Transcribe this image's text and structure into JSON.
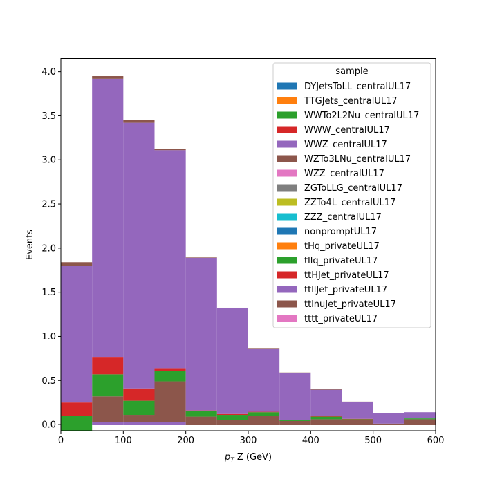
{
  "chart_data": {
    "type": "bar",
    "stacked": true,
    "histogram": true,
    "xlabel_main": "p",
    "xlabel_sub": "T",
    "xlabel_rest": " Z (GeV)",
    "ylabel": "Events",
    "xlim": [
      0,
      600
    ],
    "ylim": [
      -0.07,
      4.15
    ],
    "bin_edges": [
      0,
      50,
      100,
      150,
      200,
      250,
      300,
      350,
      400,
      450,
      500,
      550,
      600
    ],
    "x_ticks": [
      0,
      100,
      200,
      300,
      400,
      500,
      600
    ],
    "y_ticks": [
      0.0,
      0.5,
      1.0,
      1.5,
      2.0,
      2.5,
      3.0,
      3.5,
      4.0
    ],
    "x_tick_labels": [
      "0",
      "100",
      "200",
      "300",
      "400",
      "500",
      "600"
    ],
    "y_tick_labels": [
      "0.0",
      "0.5",
      "1.0",
      "1.5",
      "2.0",
      "2.5",
      "3.0",
      "3.5",
      "4.0"
    ],
    "legend": {
      "title": "sample",
      "placement": "top-right",
      "entries": [
        {
          "name": "DYJetsToLL_centralUL17",
          "color": "#1f77b4"
        },
        {
          "name": "TTGJets_centralUL17",
          "color": "#ff7f0e"
        },
        {
          "name": "WWTo2L2Nu_centralUL17",
          "color": "#2ca02c"
        },
        {
          "name": "WWW_centralUL17",
          "color": "#d62728"
        },
        {
          "name": "WWZ_centralUL17",
          "color": "#9467bd"
        },
        {
          "name": "WZTo3LNu_centralUL17",
          "color": "#8c564b"
        },
        {
          "name": "WZZ_centralUL17",
          "color": "#e377c2"
        },
        {
          "name": "ZGToLLG_centralUL17",
          "color": "#7f7f7f"
        },
        {
          "name": "ZZTo4L_centralUL17",
          "color": "#bcbd22"
        },
        {
          "name": "ZZZ_centralUL17",
          "color": "#17becf"
        },
        {
          "name": "nonpromptUL17",
          "color": "#1f77b4"
        },
        {
          "name": "tHq_privateUL17",
          "color": "#ff7f0e"
        },
        {
          "name": "tllq_privateUL17",
          "color": "#2ca02c"
        },
        {
          "name": "ttHJet_privateUL17",
          "color": "#d62728"
        },
        {
          "name": "ttllJet_privateUL17",
          "color": "#9467bd"
        },
        {
          "name": "ttlnuJet_privateUL17",
          "color": "#8c564b"
        },
        {
          "name": "tttt_privateUL17",
          "color": "#e377c2"
        }
      ]
    },
    "series": [
      {
        "name": "WWZ_centralUL17",
        "color": "#9467bd",
        "values": [
          0,
          0.03,
          0.03,
          0.03,
          0,
          0,
          0,
          0,
          0,
          0,
          0,
          0
        ]
      },
      {
        "name": "tllq_privateUL17",
        "color": "#2ca02c",
        "values": [
          -0.07,
          0,
          0,
          0,
          0,
          0,
          0,
          0,
          0,
          0,
          0,
          0
        ]
      },
      {
        "name": "WZTo3LNu_centralUL17",
        "color": "#8c564b",
        "values": [
          0,
          0.29,
          0.08,
          0.46,
          0.09,
          0.05,
          0.1,
          0.04,
          0.06,
          0.05,
          0.01,
          0.06
        ]
      },
      {
        "name": "tllq_privateUL17",
        "color": "#2ca02c",
        "values": [
          0.1,
          0.25,
          0.16,
          0.12,
          0.06,
          0.06,
          0.04,
          0.01,
          0.03,
          0.01,
          0,
          0.01
        ]
      },
      {
        "name": "ttHJet_privateUL17",
        "color": "#d62728",
        "values": [
          0.15,
          0.19,
          0.14,
          0.03,
          0.01,
          0.01,
          0.005,
          0.005,
          0.005,
          0.005,
          0,
          0
        ]
      },
      {
        "name": "ttllJet_privateUL17",
        "color": "#9467bd",
        "values": [
          1.55,
          3.16,
          3.01,
          2.47,
          1.73,
          1.2,
          0.71,
          0.53,
          0.3,
          0.19,
          0.12,
          0.07
        ]
      },
      {
        "name": "ttlnuJet_privateUL17",
        "color": "#8c564b",
        "values": [
          0.04,
          0.03,
          0.03,
          0.01,
          0.005,
          0.005,
          0.005,
          0.005,
          0.005,
          0.005,
          0,
          0
        ]
      }
    ]
  }
}
